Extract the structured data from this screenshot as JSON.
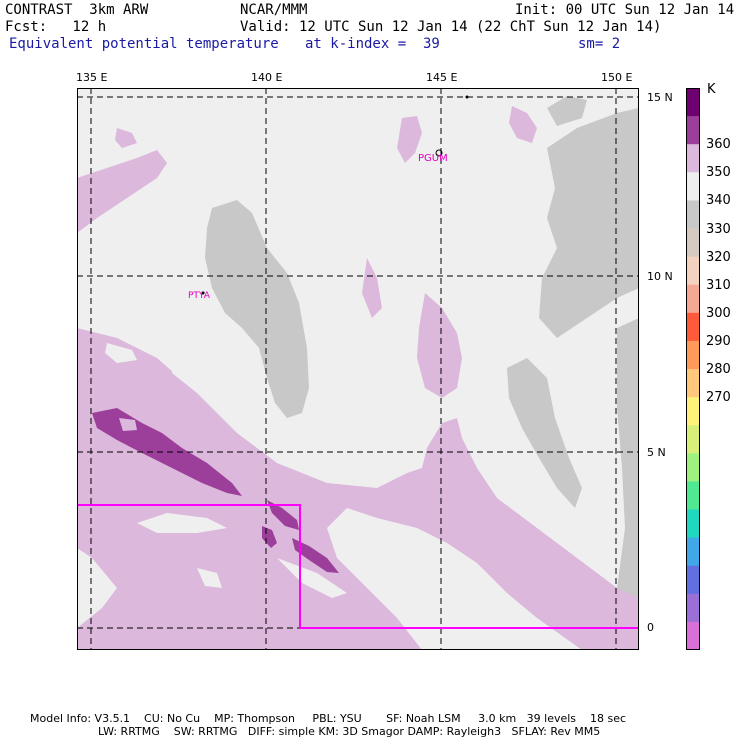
{
  "header": {
    "model": "CONTRAST  3km ARW",
    "source": "NCAR/MMM",
    "init": "Init: 00 UTC Sun 12 Jan 14",
    "fcst": "Fcst:   12 h",
    "valid": "Valid: 12 UTC Sun 12 Jan 14 (22 ChT Sun 12 Jan 14)",
    "field": "Equivalent potential temperature",
    "level": "at k-index =  39",
    "smooth": "sm= 2"
  },
  "map": {
    "lon_labels": [
      "135 E",
      "140 E",
      "145 E",
      "150 E"
    ],
    "lat_labels": [
      "15 N",
      "10 N",
      "5 N",
      "0"
    ],
    "place_labels": [
      "PGUM",
      "PTYA"
    ],
    "colors": {
      "land": "#c8c8c8",
      "bg": "#efefef",
      "c360": "#dcb8dc",
      "c365": "#9b3f9b",
      "box": "#ff00ff"
    }
  },
  "colorbar": {
    "unit": "K",
    "labels": [
      "360",
      "350",
      "340",
      "330",
      "320",
      "310",
      "300",
      "290",
      "280",
      "270"
    ],
    "colors": [
      "#6e0070",
      "#9b3f9b",
      "#dcb8dc",
      "#efefef",
      "#c8c8c8",
      "#d6cbc2",
      "#f4d2c0",
      "#f5a893",
      "#ff5a3a",
      "#ff9a5a",
      "#ffc87a",
      "#fff27a",
      "#d8f07a",
      "#a0f080",
      "#50e890",
      "#20d8c0",
      "#40a8e8",
      "#6070e0",
      "#9a70d8",
      "#d870d8"
    ]
  },
  "footer": {
    "line1": "Model Info: V3.5.1    CU: No Cu    MP: Thompson     PBL: YSU       SF: Noah LSM     3.0 km   39 levels    18 sec",
    "line2": "LW: RRTMG    SW: RRTMG   DIFF: simple KM: 3D Smagor DAMP: Rayleigh3   SFLAY: Rev MM5"
  }
}
